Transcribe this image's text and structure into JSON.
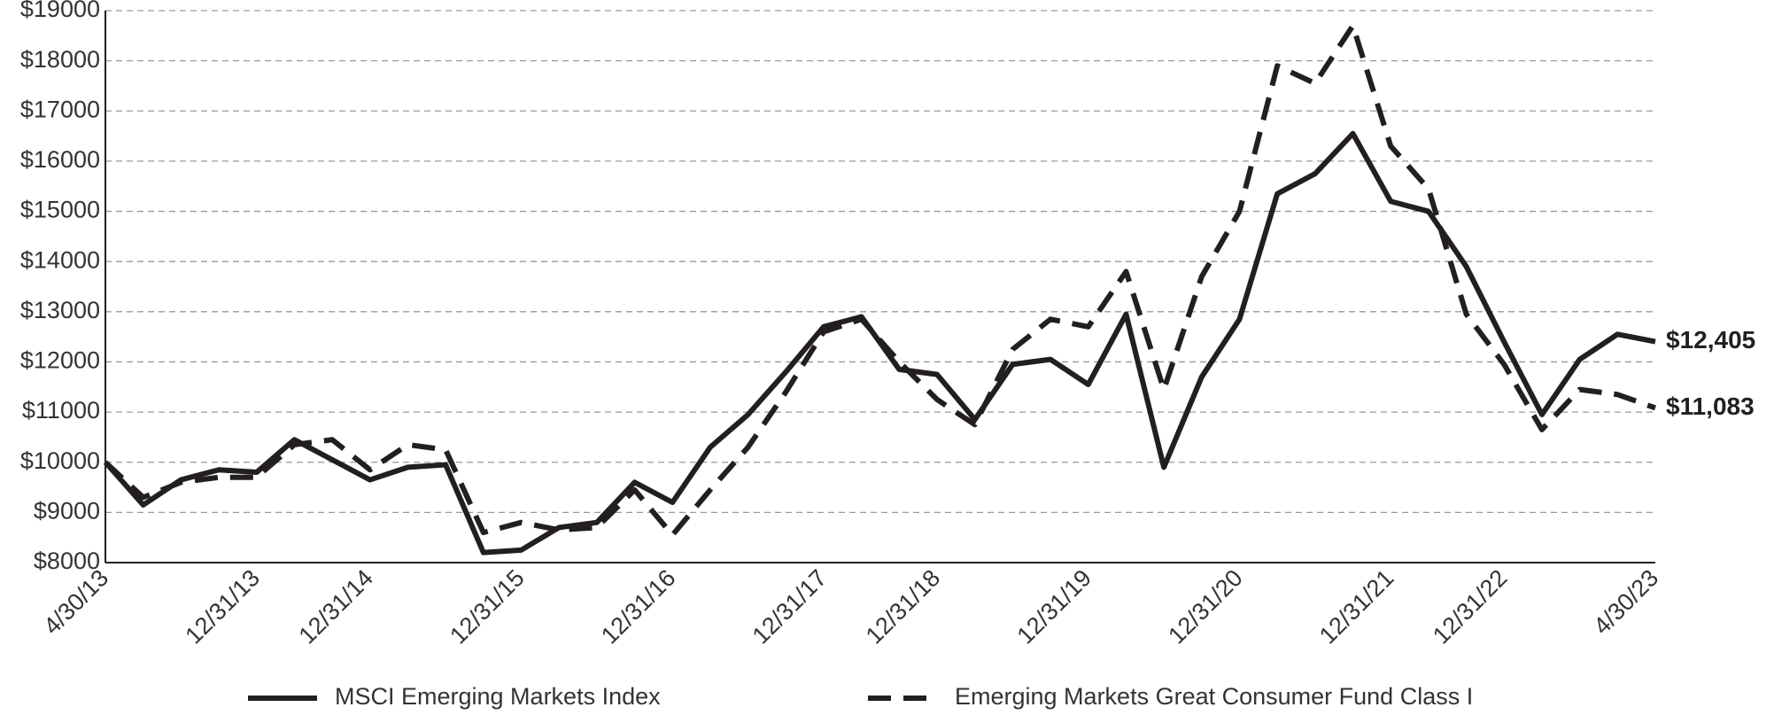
{
  "chart_data": {
    "type": "line",
    "categories": [
      "4/30/13",
      null,
      null,
      null,
      "12/31/13",
      null,
      null,
      "12/31/14",
      null,
      null,
      null,
      "12/31/15",
      null,
      null,
      null,
      "12/31/16",
      null,
      null,
      null,
      "12/31/17",
      null,
      null,
      "12/31/18",
      null,
      null,
      null,
      "12/31/19",
      null,
      null,
      null,
      "12/31/20",
      null,
      null,
      null,
      "12/31/21",
      null,
      null,
      "12/31/22",
      null,
      null,
      null,
      "4/30/23"
    ],
    "series": [
      {
        "name": "MSCI Emerging Markets Index",
        "color": "#231f20",
        "dash": "solid",
        "values": [
          10000,
          9150,
          9650,
          9850,
          9800,
          10450,
          10050,
          9650,
          9900,
          9950,
          8200,
          8250,
          8700,
          8800,
          9600,
          9200,
          10300,
          10950,
          11800,
          12700,
          12900,
          11850,
          11750,
          10850,
          11950,
          12050,
          11550,
          12950,
          9900,
          11700,
          12850,
          15350,
          15750,
          16550,
          15200,
          15000,
          13900,
          12400,
          10950,
          12050,
          12550,
          12405
        ],
        "value_labels": [
          null,
          null,
          null,
          null,
          null,
          null,
          null,
          null,
          null,
          null,
          null,
          null,
          null,
          null,
          null,
          null,
          null,
          null,
          null,
          null,
          null,
          null,
          null,
          null,
          null,
          null,
          null,
          null,
          null,
          null,
          null,
          null,
          null,
          null,
          null,
          null,
          null,
          null,
          null,
          null,
          null,
          "$12,405"
        ]
      },
      {
        "name": "Emerging Markets Great Consumer Fund Class I",
        "color": "#231f20",
        "dash": "dashed",
        "values": [
          10000,
          9300,
          9600,
          9700,
          9700,
          10350,
          10450,
          9850,
          10350,
          10250,
          8600,
          8800,
          8650,
          8700,
          9450,
          8550,
          9450,
          10300,
          11400,
          12600,
          12850,
          12000,
          11250,
          10750,
          12250,
          12850,
          12700,
          13800,
          11450,
          13700,
          15000,
          17900,
          17550,
          18700,
          16300,
          15450,
          12950,
          11950,
          10650,
          11450,
          11350,
          11083
        ],
        "value_labels": [
          null,
          null,
          null,
          null,
          null,
          null,
          null,
          null,
          null,
          null,
          null,
          null,
          null,
          null,
          null,
          null,
          null,
          null,
          null,
          null,
          null,
          null,
          null,
          null,
          null,
          null,
          null,
          null,
          null,
          null,
          null,
          null,
          null,
          null,
          null,
          null,
          null,
          null,
          null,
          null,
          null,
          "$11,083"
        ]
      }
    ],
    "ylim": [
      8000,
      19000
    ],
    "yticks": [
      {
        "value": 8000,
        "label": "$8000"
      },
      {
        "value": 9000,
        "label": "$9000"
      },
      {
        "value": 10000,
        "label": "$10000"
      },
      {
        "value": 11000,
        "label": "$11000"
      },
      {
        "value": 12000,
        "label": "$12000"
      },
      {
        "value": 13000,
        "label": "$13000"
      },
      {
        "value": 14000,
        "label": "$14000"
      },
      {
        "value": 15000,
        "label": "$15000"
      },
      {
        "value": 16000,
        "label": "$16000"
      },
      {
        "value": 17000,
        "label": "$17000"
      },
      {
        "value": 18000,
        "label": "$18000"
      },
      {
        "value": 19000,
        "label": "$19000"
      }
    ],
    "grid": true
  }
}
